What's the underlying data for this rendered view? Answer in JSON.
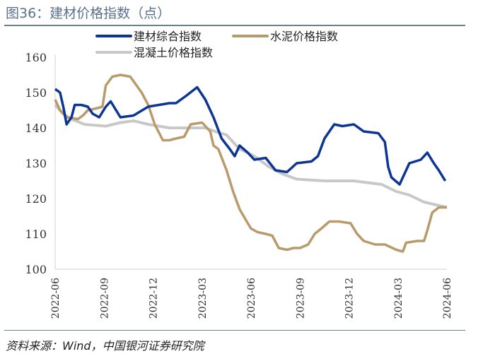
{
  "title": "图36：建材价格指数（点）",
  "source": "资料来源：Wind，中国银河证券研究院",
  "chart_data": {
    "type": "line",
    "title": "图36：建材价格指数（点）",
    "xlabel": "",
    "ylabel": "",
    "ylim": [
      100,
      160
    ],
    "yticks": [
      100,
      110,
      120,
      130,
      140,
      150,
      160
    ],
    "xticks": [
      "2022-06",
      "2022-09",
      "2022-12",
      "2023-03",
      "2023-06",
      "2023-09",
      "2023-12",
      "2024-03",
      "2024-06"
    ],
    "x_unit": "months since 2022-06",
    "xlim": [
      0,
      24
    ],
    "legend": "top",
    "series": [
      {
        "name": "建材综合指数",
        "color": "#0d3594",
        "points": [
          [
            0,
            151
          ],
          [
            0.3,
            150
          ],
          [
            0.5,
            146
          ],
          [
            0.7,
            141
          ],
          [
            1.0,
            143
          ],
          [
            1.2,
            146.5
          ],
          [
            1.6,
            146.5
          ],
          [
            2.0,
            146
          ],
          [
            2.3,
            144
          ],
          [
            2.7,
            143
          ],
          [
            3.1,
            146
          ],
          [
            3.4,
            147.5
          ],
          [
            4.0,
            143
          ],
          [
            4.8,
            143.5
          ],
          [
            5.7,
            146
          ],
          [
            7.0,
            147
          ],
          [
            7.4,
            147
          ],
          [
            8.0,
            149
          ],
          [
            8.7,
            151.5
          ],
          [
            9.2,
            148
          ],
          [
            9.7,
            143
          ],
          [
            10.2,
            137
          ],
          [
            10.7,
            134
          ],
          [
            11.0,
            132
          ],
          [
            11.3,
            135
          ],
          [
            11.8,
            133
          ],
          [
            12.2,
            131
          ],
          [
            12.9,
            131.5
          ],
          [
            13.5,
            128
          ],
          [
            14.2,
            127.5
          ],
          [
            14.8,
            130
          ],
          [
            15.7,
            130.5
          ],
          [
            16.1,
            132
          ],
          [
            16.5,
            137
          ],
          [
            17.1,
            141
          ],
          [
            17.6,
            140.5
          ],
          [
            18.3,
            141
          ],
          [
            18.9,
            139
          ],
          [
            19.8,
            138.5
          ],
          [
            20.2,
            136
          ],
          [
            20.4,
            129
          ],
          [
            20.6,
            126
          ],
          [
            21.1,
            124
          ],
          [
            21.4,
            127
          ],
          [
            21.7,
            130
          ],
          [
            22.4,
            131
          ],
          [
            22.8,
            133
          ],
          [
            23.2,
            130
          ],
          [
            23.5,
            128
          ],
          [
            23.9,
            125
          ]
        ]
      },
      {
        "name": "水泥价格指数",
        "color": "#b99a6b",
        "points": [
          [
            0,
            148
          ],
          [
            0.3,
            145
          ],
          [
            0.7,
            143
          ],
          [
            1.4,
            142.5
          ],
          [
            1.7,
            143.5
          ],
          [
            2.0,
            145
          ],
          [
            2.5,
            145.5
          ],
          [
            2.9,
            146
          ],
          [
            3.1,
            152
          ],
          [
            3.5,
            154.5
          ],
          [
            4.0,
            155
          ],
          [
            4.6,
            154.5
          ],
          [
            5.3,
            150
          ],
          [
            5.7,
            146.5
          ],
          [
            6.1,
            141
          ],
          [
            6.6,
            136.5
          ],
          [
            7.0,
            136.5
          ],
          [
            7.4,
            137
          ],
          [
            7.9,
            137.5
          ],
          [
            8.3,
            141
          ],
          [
            9.0,
            141.5
          ],
          [
            9.5,
            139
          ],
          [
            9.7,
            135
          ],
          [
            10.0,
            134
          ],
          [
            10.5,
            128
          ],
          [
            10.9,
            122
          ],
          [
            11.3,
            117
          ],
          [
            11.8,
            113
          ],
          [
            12.0,
            111.5
          ],
          [
            12.4,
            110.5
          ],
          [
            12.9,
            110
          ],
          [
            13.3,
            109.5
          ],
          [
            13.7,
            106
          ],
          [
            14.2,
            105.5
          ],
          [
            14.6,
            106
          ],
          [
            15.0,
            106
          ],
          [
            15.5,
            107
          ],
          [
            15.9,
            110
          ],
          [
            16.3,
            111.5
          ],
          [
            16.8,
            113.5
          ],
          [
            17.4,
            113.5
          ],
          [
            18.1,
            113
          ],
          [
            18.5,
            110
          ],
          [
            18.9,
            108
          ],
          [
            19.6,
            107
          ],
          [
            20.2,
            107
          ],
          [
            20.9,
            105.5
          ],
          [
            21.3,
            105
          ],
          [
            21.5,
            107.5
          ],
          [
            22.2,
            108
          ],
          [
            22.6,
            108
          ],
          [
            22.8,
            111
          ],
          [
            23.1,
            116
          ],
          [
            23.5,
            117.5
          ],
          [
            24,
            117.5
          ]
        ]
      },
      {
        "name": "混凝土价格指数",
        "color": "#c8c8c8",
        "points": [
          [
            0,
            146.5
          ],
          [
            0.5,
            144
          ],
          [
            1.0,
            142.5
          ],
          [
            1.8,
            141
          ],
          [
            3.1,
            140.5
          ],
          [
            4.0,
            141.5
          ],
          [
            4.8,
            142
          ],
          [
            5.7,
            141
          ],
          [
            7.0,
            140
          ],
          [
            8.3,
            140
          ],
          [
            9.2,
            140
          ],
          [
            9.8,
            139
          ],
          [
            10.5,
            138
          ],
          [
            11.3,
            134
          ],
          [
            12.2,
            132
          ],
          [
            13.1,
            129
          ],
          [
            13.9,
            127
          ],
          [
            14.8,
            125.5
          ],
          [
            16.5,
            125
          ],
          [
            18.3,
            125
          ],
          [
            20.0,
            124
          ],
          [
            20.9,
            122
          ],
          [
            21.7,
            121
          ],
          [
            22.6,
            119
          ],
          [
            24,
            117.5
          ]
        ]
      }
    ]
  }
}
